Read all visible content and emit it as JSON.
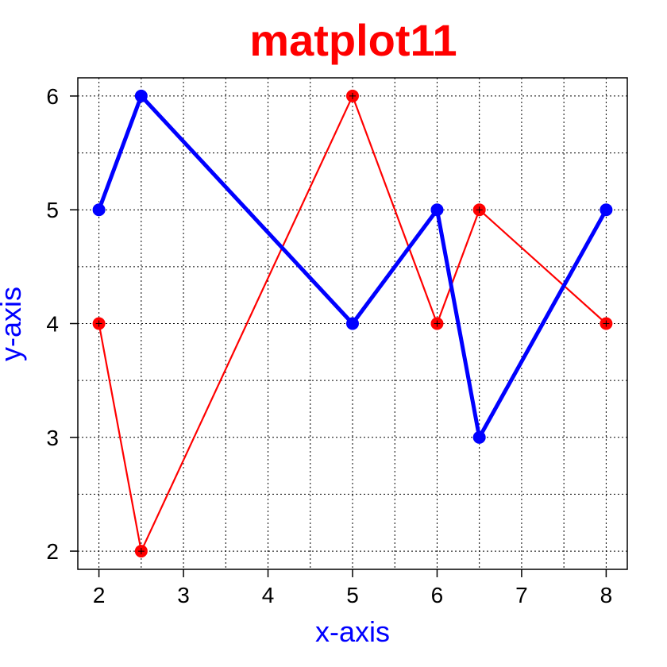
{
  "chart_data": {
    "type": "line",
    "title": "matplot11",
    "xlabel": "x-axis",
    "ylabel": "y-axis",
    "xlim": [
      1.75,
      8.25
    ],
    "ylim": [
      1.84,
      6.16
    ],
    "x_ticks": [
      2,
      3,
      4,
      5,
      6,
      7,
      8
    ],
    "y_ticks": [
      2,
      3,
      4,
      5,
      6
    ],
    "grid": true,
    "x": [
      2,
      2.5,
      5,
      6,
      6.5,
      8
    ],
    "series": [
      {
        "values": [
          4,
          2,
          6,
          4,
          5,
          4
        ],
        "color": "#ff0000",
        "line": "thin"
      },
      {
        "values": [
          5,
          6,
          4,
          5,
          3,
          5
        ],
        "color": "#0000ff",
        "line": "thick"
      }
    ],
    "colors": {
      "title": "#ff0000",
      "axis_labels": "#0000ff"
    }
  }
}
